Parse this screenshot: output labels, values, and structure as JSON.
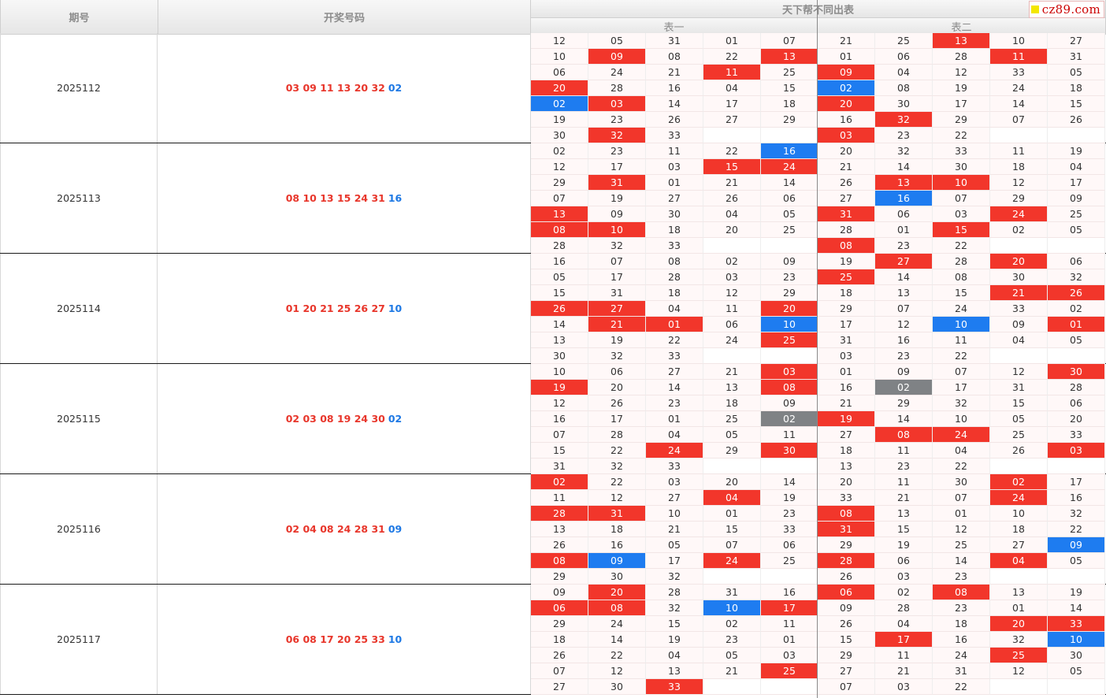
{
  "watermark": "cz89.com",
  "header": {
    "col_period": "期号",
    "col_draw": "开奖号码",
    "col_table": "天下帮不同出表",
    "sub_table1": "表一",
    "sub_table2": "表二"
  },
  "rows": [
    {
      "period": "2025112",
      "draw_red": "03 09 11 13 20 32",
      "draw_blue": "02",
      "table1": [
        [
          "12",
          "05",
          "31",
          "01",
          "07"
        ],
        [
          "10",
          "09",
          "08",
          "22",
          "13"
        ],
        [
          "06",
          "24",
          "21",
          "11",
          "25"
        ],
        [
          "20",
          "28",
          "16",
          "04",
          "15"
        ],
        [
          "02",
          "03",
          "14",
          "17",
          "18"
        ],
        [
          "19",
          "23",
          "26",
          "27",
          "29"
        ],
        [
          "30",
          "32",
          "33",
          "",
          ""
        ]
      ],
      "table2": [
        [
          "21",
          "25",
          "13",
          "10",
          "27"
        ],
        [
          "01",
          "06",
          "28",
          "11",
          "31"
        ],
        [
          "09",
          "04",
          "12",
          "33",
          "05"
        ],
        [
          "02",
          "08",
          "19",
          "24",
          "18"
        ],
        [
          "20",
          "30",
          "17",
          "14",
          "15"
        ],
        [
          "16",
          "32",
          "29",
          "07",
          "26"
        ],
        [
          "03",
          "23",
          "22",
          "",
          ""
        ]
      ]
    },
    {
      "period": "2025113",
      "draw_red": "08 10 13 15 24 31",
      "draw_blue": "16",
      "table1": [
        [
          "02",
          "23",
          "11",
          "22",
          "16"
        ],
        [
          "12",
          "17",
          "03",
          "15",
          "24"
        ],
        [
          "29",
          "31",
          "01",
          "21",
          "14"
        ],
        [
          "07",
          "19",
          "27",
          "26",
          "06"
        ],
        [
          "13",
          "09",
          "30",
          "04",
          "05"
        ],
        [
          "08",
          "10",
          "18",
          "20",
          "25"
        ],
        [
          "28",
          "32",
          "33",
          "",
          ""
        ]
      ],
      "table2": [
        [
          "20",
          "32",
          "33",
          "11",
          "19"
        ],
        [
          "21",
          "14",
          "30",
          "18",
          "04"
        ],
        [
          "26",
          "13",
          "10",
          "12",
          "17"
        ],
        [
          "27",
          "16",
          "07",
          "29",
          "09"
        ],
        [
          "31",
          "06",
          "03",
          "24",
          "25"
        ],
        [
          "28",
          "01",
          "15",
          "02",
          "05"
        ],
        [
          "08",
          "23",
          "22",
          "",
          ""
        ]
      ]
    },
    {
      "period": "2025114",
      "draw_red": "01 20 21 25 26 27",
      "draw_blue": "10",
      "table1": [
        [
          "16",
          "07",
          "08",
          "02",
          "09"
        ],
        [
          "05",
          "17",
          "28",
          "03",
          "23"
        ],
        [
          "15",
          "31",
          "18",
          "12",
          "29"
        ],
        [
          "26",
          "27",
          "04",
          "11",
          "20"
        ],
        [
          "14",
          "21",
          "01",
          "06",
          "10"
        ],
        [
          "13",
          "19",
          "22",
          "24",
          "25"
        ],
        [
          "30",
          "32",
          "33",
          "",
          ""
        ]
      ],
      "table2": [
        [
          "19",
          "27",
          "28",
          "20",
          "06"
        ],
        [
          "25",
          "14",
          "08",
          "30",
          "32"
        ],
        [
          "18",
          "13",
          "15",
          "21",
          "26"
        ],
        [
          "29",
          "07",
          "24",
          "33",
          "02"
        ],
        [
          "17",
          "12",
          "10",
          "09",
          "01"
        ],
        [
          "31",
          "16",
          "11",
          "04",
          "05"
        ],
        [
          "03",
          "23",
          "22",
          "",
          ""
        ]
      ]
    },
    {
      "period": "2025115",
      "draw_red": "02 03 08 19 24 30",
      "draw_blue": "02",
      "table1": [
        [
          "10",
          "06",
          "27",
          "21",
          "03"
        ],
        [
          "19",
          "20",
          "14",
          "13",
          "08"
        ],
        [
          "12",
          "26",
          "23",
          "18",
          "09"
        ],
        [
          "16",
          "17",
          "01",
          "25",
          "02"
        ],
        [
          "07",
          "28",
          "04",
          "05",
          "11"
        ],
        [
          "15",
          "22",
          "24",
          "29",
          "30"
        ],
        [
          "31",
          "32",
          "33",
          "",
          ""
        ]
      ],
      "table2": [
        [
          "01",
          "09",
          "07",
          "12",
          "30"
        ],
        [
          "16",
          "02",
          "17",
          "31",
          "28"
        ],
        [
          "21",
          "29",
          "32",
          "15",
          "06"
        ],
        [
          "19",
          "14",
          "10",
          "05",
          "20"
        ],
        [
          "27",
          "08",
          "24",
          "25",
          "33"
        ],
        [
          "18",
          "11",
          "04",
          "26",
          "03"
        ],
        [
          "13",
          "23",
          "22",
          "",
          ""
        ]
      ]
    },
    {
      "period": "2025116",
      "draw_red": "02 04 08 24 28 31",
      "draw_blue": "09",
      "table1": [
        [
          "02",
          "22",
          "03",
          "20",
          "14"
        ],
        [
          "11",
          "12",
          "27",
          "04",
          "19"
        ],
        [
          "28",
          "31",
          "10",
          "01",
          "23"
        ],
        [
          "13",
          "18",
          "21",
          "15",
          "33"
        ],
        [
          "26",
          "16",
          "05",
          "07",
          "06"
        ],
        [
          "08",
          "09",
          "17",
          "24",
          "25"
        ],
        [
          "29",
          "30",
          "32",
          "",
          ""
        ]
      ],
      "table2": [
        [
          "20",
          "11",
          "30",
          "02",
          "17"
        ],
        [
          "33",
          "21",
          "07",
          "24",
          "16"
        ],
        [
          "08",
          "13",
          "01",
          "10",
          "32"
        ],
        [
          "31",
          "15",
          "12",
          "18",
          "22"
        ],
        [
          "29",
          "19",
          "25",
          "27",
          "09"
        ],
        [
          "28",
          "06",
          "14",
          "04",
          "05"
        ],
        [
          "26",
          "03",
          "23",
          "",
          ""
        ]
      ]
    },
    {
      "period": "2025117",
      "draw_red": "06 08 17 20 25 33",
      "draw_blue": "10",
      "table1": [
        [
          "09",
          "20",
          "28",
          "31",
          "16"
        ],
        [
          "06",
          "08",
          "32",
          "10",
          "17"
        ],
        [
          "29",
          "24",
          "15",
          "02",
          "11"
        ],
        [
          "18",
          "14",
          "19",
          "23",
          "01"
        ],
        [
          "26",
          "22",
          "04",
          "05",
          "03"
        ],
        [
          "07",
          "12",
          "13",
          "21",
          "25"
        ],
        [
          "27",
          "30",
          "33",
          "",
          ""
        ]
      ],
      "table2": [
        [
          "06",
          "02",
          "08",
          "13",
          "19"
        ],
        [
          "09",
          "28",
          "23",
          "01",
          "14"
        ],
        [
          "26",
          "04",
          "18",
          "20",
          "33"
        ],
        [
          "15",
          "17",
          "16",
          "32",
          "10"
        ],
        [
          "29",
          "11",
          "24",
          "25",
          "30"
        ],
        [
          "27",
          "21",
          "31",
          "12",
          "05"
        ],
        [
          "07",
          "03",
          "22",
          "",
          ""
        ]
      ]
    }
  ],
  "colors": {
    "red": "#f2362b",
    "blue": "#1e7cf0",
    "gray": "#7f8285",
    "draw_red": "#e8362b",
    "draw_blue": "#1d78e4"
  }
}
